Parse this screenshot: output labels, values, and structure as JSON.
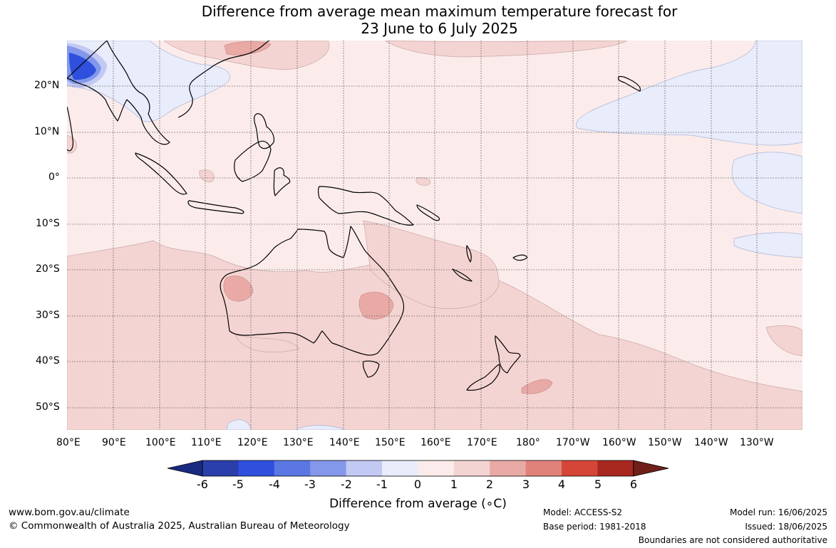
{
  "title": {
    "line1": "Difference from average mean maximum temperature forecast for",
    "line2": "23 June to 6 July 2025"
  },
  "map": {
    "lat_labels": [
      "20°N",
      "10°N",
      "0°",
      "10°S",
      "20°S",
      "30°S",
      "40°S",
      "50°S"
    ],
    "lon_labels": [
      "80°E",
      "90°E",
      "100°E",
      "110°E",
      "120°E",
      "130°E",
      "140°E",
      "150°E",
      "160°E",
      "170°E",
      "180°",
      "170°W",
      "160°W",
      "150°W",
      "140°W",
      "130°W"
    ],
    "region": "Australia, Indian Ocean and Western Pacific",
    "colors": {
      "land_outline": "#000000",
      "ocean_background": "#fbeceb",
      "anomaly_0_to_1": "#fbeceb",
      "anomaly_1_to_2": "#f4d4d2",
      "anomaly_2_to_3": "#e9aaa6",
      "anomaly_minus1_to_0": "#e8ecfb",
      "anomaly_cold_core": "#2f4fdd"
    }
  },
  "colorbar": {
    "label": "Difference from average (∘C)",
    "ticks": [
      "-6",
      "-5",
      "-4",
      "-3",
      "-2",
      "-1",
      "0",
      "1",
      "2",
      "3",
      "4",
      "5",
      "6"
    ],
    "colors": [
      "#1a2a80",
      "#2a3fab",
      "#2f4fdd",
      "#5b77e3",
      "#8398ea",
      "#c2c9f3",
      "#e8ecfb",
      "#fbeceb",
      "#f4d4d2",
      "#e9aaa6",
      "#e0827a",
      "#d54638",
      "#a8281f",
      "#70201a"
    ]
  },
  "footer": {
    "website": "www.bom.gov.au/climate",
    "copyright": "© Commonwealth of Australia 2025, Australian Bureau of Meteorology",
    "model": "Model: ACCESS-S2",
    "base_period": "Base period: 1981-2018",
    "model_run": "Model run: 16/06/2025",
    "issued": "Issued: 18/06/2025",
    "disclaimer": "Boundaries are not considered authoritative"
  }
}
